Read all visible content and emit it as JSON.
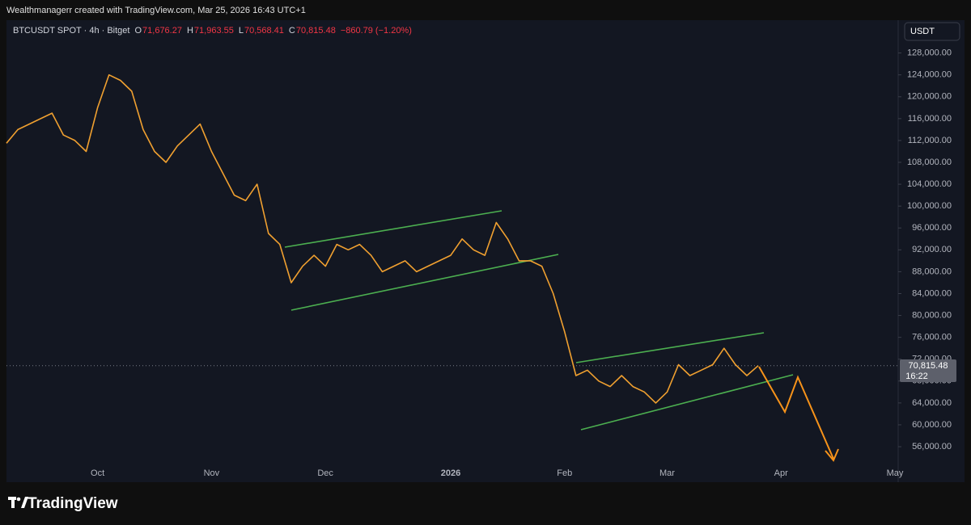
{
  "header": {
    "attribution": "Wealthmanagerr created with TradingView.com, Mar 25, 2026 16:43 UTC+1",
    "brand": "TradingView"
  },
  "chart_data": {
    "type": "line",
    "symbol": "BTCUSDT SPOT · 4h · Bitget",
    "ohlc": [
      {
        "key": "O",
        "text": "71,676.27"
      },
      {
        "key": "H",
        "text": "71,963.55"
      },
      {
        "key": "L",
        "text": "70,568.41"
      },
      {
        "key": "C",
        "text": "70,815.48"
      }
    ],
    "change": "−860.79 (−1.20%)",
    "currency": "USDT",
    "last_price": {
      "value": 70815.48,
      "label": "70,815.48"
    },
    "countdown": "16:22",
    "color": "#f0a030",
    "categories": [
      null,
      null,
      null,
      null,
      null,
      null,
      null,
      null,
      "Oct",
      null,
      null,
      null,
      null,
      null,
      null,
      null,
      null,
      null,
      "Nov",
      null,
      null,
      null,
      null,
      null,
      null,
      null,
      null,
      null,
      "Dec",
      null,
      null,
      null,
      null,
      null,
      null,
      null,
      null,
      null,
      null,
      "2026",
      null,
      null,
      null,
      null,
      null,
      null,
      null,
      null,
      null,
      "Feb",
      null,
      null,
      null,
      null,
      null,
      null,
      null,
      null,
      "Mar",
      null,
      null,
      null,
      null,
      null,
      null,
      null,
      null,
      null,
      "Apr",
      null,
      null,
      null,
      null,
      null,
      null,
      null,
      null,
      null,
      "May"
    ],
    "values": [
      111500,
      114000,
      115000,
      116000,
      117000,
      113000,
      112000,
      110000,
      118000,
      124000,
      123000,
      121000,
      114000,
      110000,
      108000,
      111000,
      113000,
      115000,
      110000,
      106000,
      102000,
      101000,
      104000,
      95000,
      93000,
      86000,
      89000,
      91000,
      89000,
      93000,
      92000,
      93000,
      91000,
      88000,
      89000,
      90000,
      88000,
      89000,
      90000,
      91000,
      94000,
      92000,
      91000,
      97000,
      94000,
      90000,
      90000,
      89000,
      84000,
      77000,
      69000,
      70000,
      68000,
      67000,
      69000,
      67000,
      66000,
      64000,
      66000,
      71000,
      69000,
      70000,
      71000,
      74000,
      71000,
      69000,
      70815.48,
      null,
      null,
      null,
      null,
      null,
      null,
      null,
      null,
      null,
      null,
      null,
      null
    ],
    "ylim": [
      53200,
      134000
    ],
    "yticks": [
      {
        "value": 56000,
        "label": "56,000.00"
      },
      {
        "value": 60000,
        "label": "60,000.00"
      },
      {
        "value": 64000,
        "label": "64,000.00"
      },
      {
        "value": 68000,
        "label": "68,000.00"
      },
      {
        "value": 72000,
        "label": "72,000.00"
      },
      {
        "value": 76000,
        "label": "76,000.00"
      },
      {
        "value": 80000,
        "label": "80,000.00"
      },
      {
        "value": 84000,
        "label": "84,000.00"
      },
      {
        "value": 88000,
        "label": "88,000.00"
      },
      {
        "value": 92000,
        "label": "92,000.00"
      },
      {
        "value": 96000,
        "label": "96,000.00"
      },
      {
        "value": 100000,
        "label": "100,000.00"
      },
      {
        "value": 104000,
        "label": "104,000.00"
      },
      {
        "value": 108000,
        "label": "108,000.00"
      },
      {
        "value": 112000,
        "label": "112,000.00"
      },
      {
        "value": 116000,
        "label": "116,000.00"
      },
      {
        "value": 120000,
        "label": "120,000.00"
      },
      {
        "value": 124000,
        "label": "124,000.00"
      },
      {
        "value": 128000,
        "label": "128,000.00"
      }
    ],
    "grid": false
  }
}
